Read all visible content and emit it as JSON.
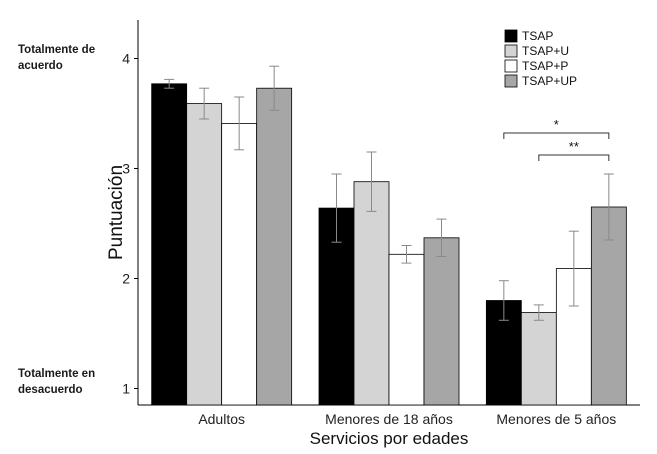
{
  "chart_data": {
    "type": "bar",
    "title": "",
    "xlabel": "Servicios por edades",
    "ylabel": "Puntuación",
    "ylim": [
      0.85,
      4.35
    ],
    "yticks": [
      "1",
      "2",
      "3",
      "4"
    ],
    "categories": [
      "Adultos",
      "Menores de 18 años",
      "Menores de 5 años"
    ],
    "series": [
      {
        "name": "TSAP",
        "color": "#000000",
        "values": [
          3.77,
          2.64,
          1.8
        ],
        "err_low": [
          3.73,
          2.33,
          1.62
        ],
        "err_high": [
          3.81,
          2.95,
          1.98
        ]
      },
      {
        "name": "TSAP+U",
        "color": "#d4d4d4",
        "values": [
          3.59,
          2.88,
          1.69
        ],
        "err_low": [
          3.45,
          2.61,
          1.62
        ],
        "err_high": [
          3.73,
          3.15,
          1.76
        ]
      },
      {
        "name": "TSAP+P",
        "color": "#ffffff",
        "values": [
          3.41,
          2.22,
          2.09
        ],
        "err_low": [
          3.17,
          2.14,
          1.75
        ],
        "err_high": [
          3.65,
          2.3,
          2.43
        ]
      },
      {
        "name": "TSAP+UP",
        "color": "#a6a6a6",
        "values": [
          3.73,
          2.37,
          2.65
        ],
        "err_low": [
          3.53,
          2.2,
          2.35
        ],
        "err_high": [
          3.93,
          2.54,
          2.95
        ]
      }
    ],
    "significance": [
      {
        "label": "*",
        "category": "Menores de 5 años",
        "from_series": "TSAP",
        "to_series": "TSAP+UP"
      },
      {
        "label": "**",
        "category": "Menores de 5 años",
        "from_series": "TSAP+U",
        "to_series": "TSAP+UP"
      }
    ],
    "legend_position": "top-right",
    "grid": false
  },
  "side_labels": {
    "top": "Totalmente de\nacuerdo",
    "bottom": "Totalmente en\ndesacuerdo"
  }
}
